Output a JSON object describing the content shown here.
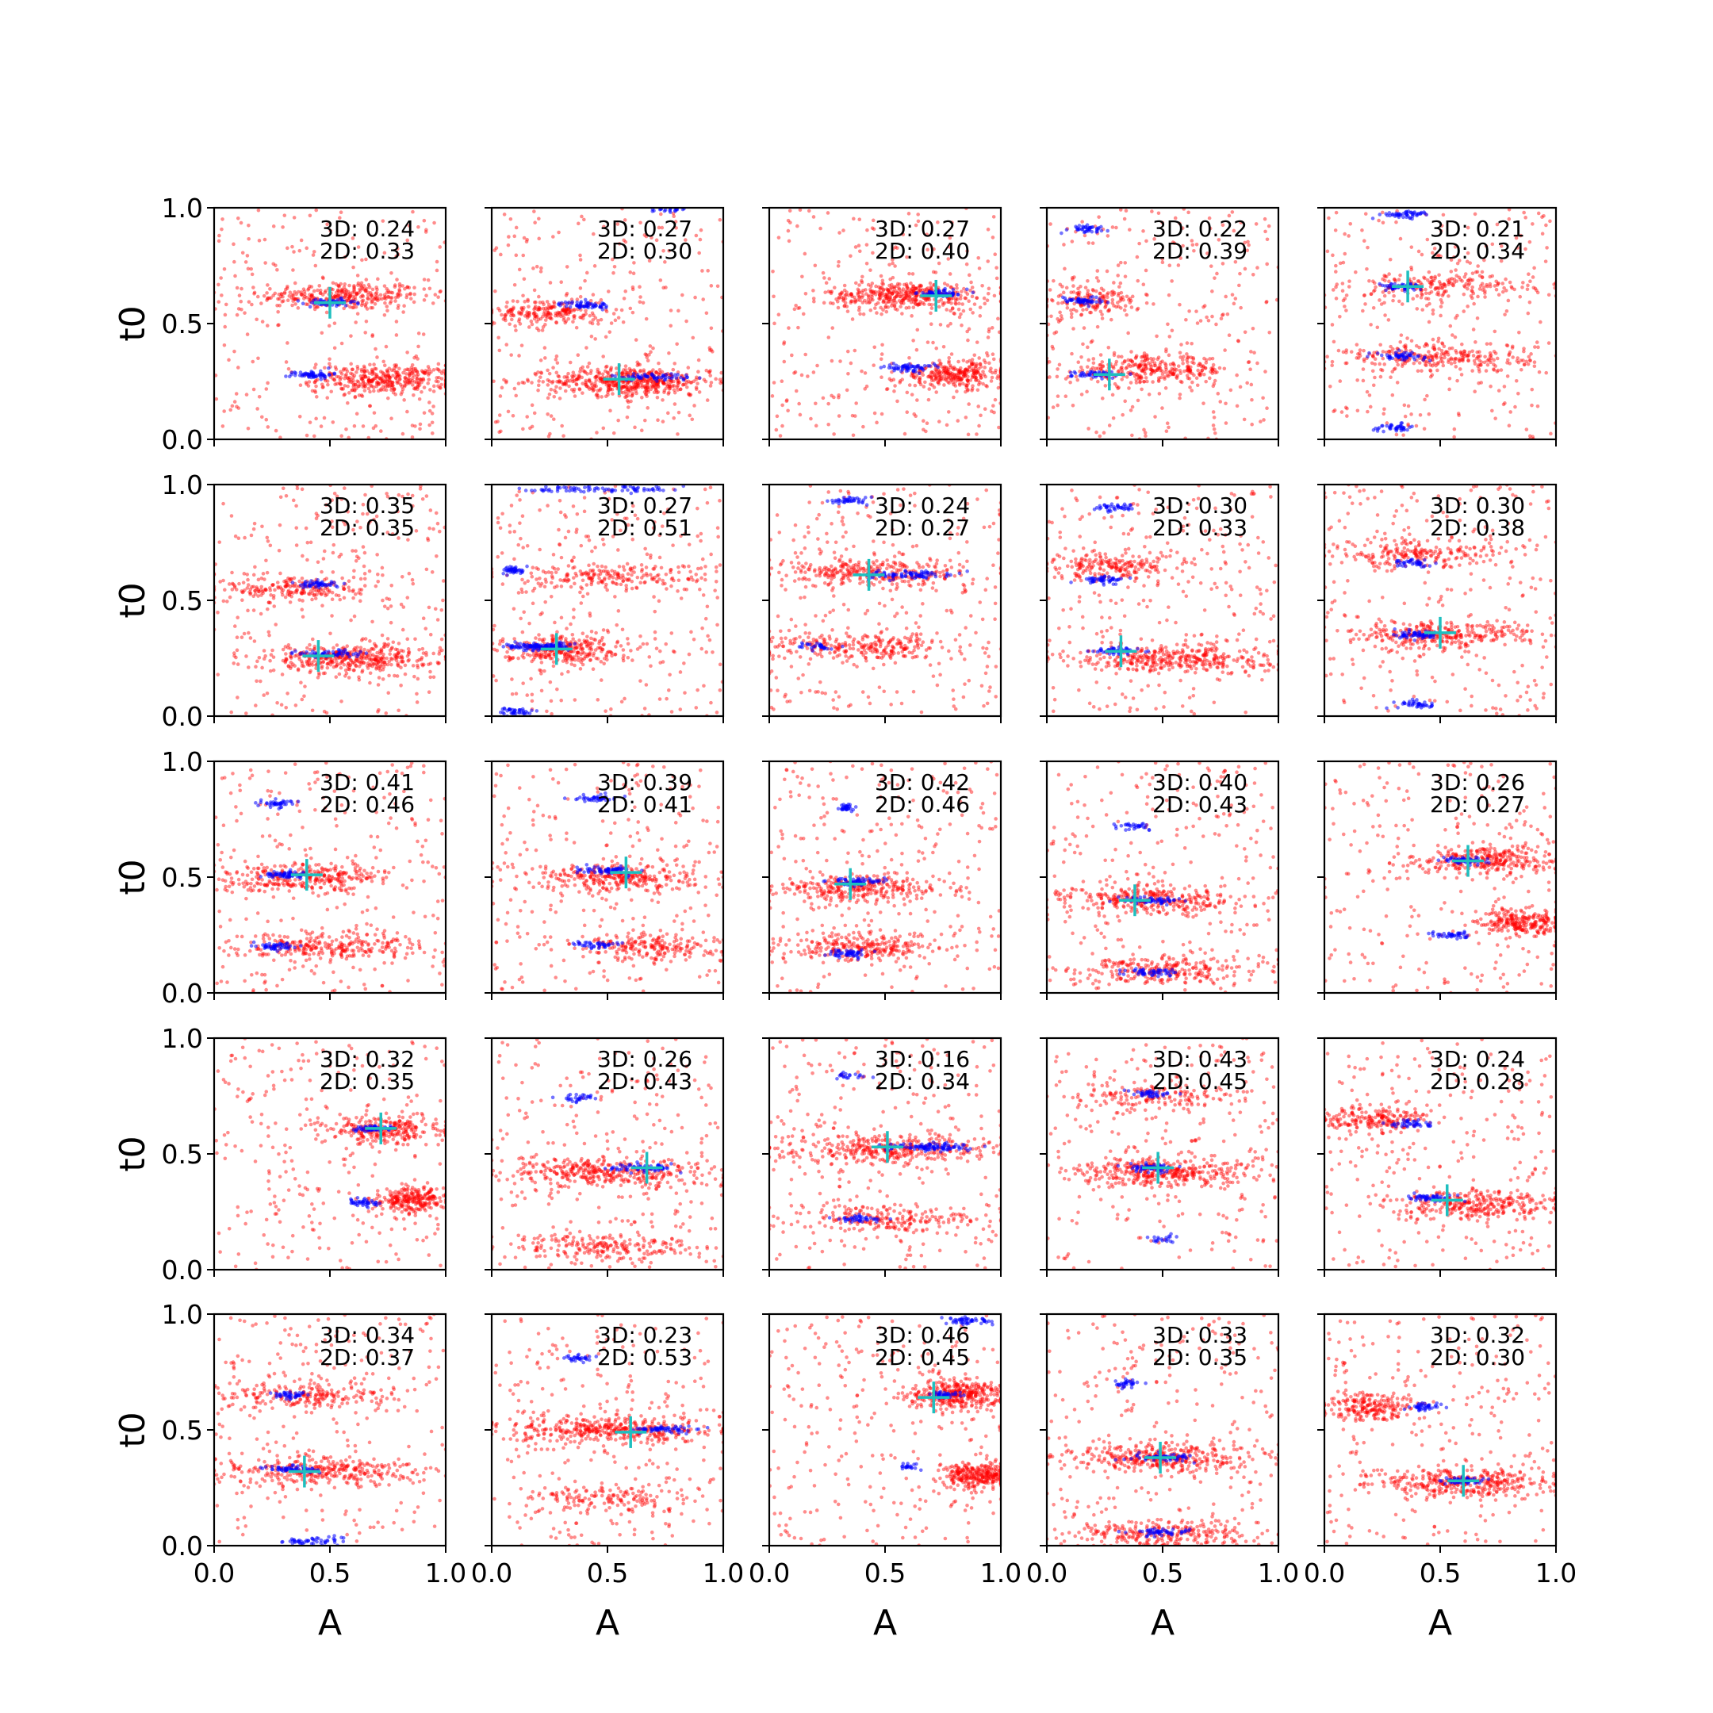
{
  "figure": {
    "rows": 5,
    "cols": 5,
    "x_axis_label": "A",
    "y_axis_label": "t0"
  },
  "colors": {
    "sample_2d": "#ff0000",
    "sample_3d": "#0000ff",
    "marker": "#1fbfbf"
  },
  "chart_data": {
    "type": "scatter",
    "xlim": [
      0,
      1
    ],
    "ylim": [
      0,
      1
    ],
    "x_ticks": [
      "0.0",
      "0.5",
      "1.0"
    ],
    "y_ticks": [
      "0.0",
      "0.5",
      "1.0"
    ],
    "xlabel": "A",
    "ylabel": "t0",
    "grid": false,
    "marker_symbol": "+",
    "panels": [
      {
        "row": 0,
        "col": 0,
        "text_3d": "3D: 0.24",
        "text_2d": "2D: 0.33",
        "marker": [
          0.5,
          0.59
        ],
        "red_bands": [
          [
            0.55,
            0.62,
            0.35,
            300
          ],
          [
            0.75,
            0.26,
            0.3,
            350
          ]
        ],
        "blue_bands": [
          [
            0.5,
            0.59,
            0.12,
            60
          ],
          [
            0.42,
            0.28,
            0.1,
            60
          ]
        ]
      },
      {
        "row": 0,
        "col": 1,
        "text_3d": "3D: 0.27",
        "text_2d": "2D: 0.30",
        "marker": [
          0.55,
          0.26
        ],
        "red_bands": [
          [
            0.6,
            0.25,
            0.35,
            500
          ],
          [
            0.25,
            0.55,
            0.25,
            200
          ]
        ],
        "blue_bands": [
          [
            0.4,
            0.58,
            0.12,
            60
          ],
          [
            0.7,
            0.27,
            0.2,
            60
          ],
          [
            0.75,
            0.99,
            0.1,
            20
          ]
        ]
      },
      {
        "row": 0,
        "col": 2,
        "text_3d": "3D: 0.27",
        "text_2d": "2D: 0.40",
        "marker": [
          0.72,
          0.62
        ],
        "red_bands": [
          [
            0.6,
            0.62,
            0.35,
            400
          ],
          [
            0.8,
            0.28,
            0.25,
            300
          ]
        ],
        "blue_bands": [
          [
            0.75,
            0.63,
            0.12,
            60
          ],
          [
            0.6,
            0.31,
            0.12,
            60
          ]
        ]
      },
      {
        "row": 0,
        "col": 3,
        "text_3d": "3D: 0.22",
        "text_2d": "2D: 0.39",
        "marker": [
          0.27,
          0.28
        ],
        "red_bands": [
          [
            0.45,
            0.3,
            0.35,
            300
          ],
          [
            0.2,
            0.6,
            0.2,
            150
          ]
        ],
        "blue_bands": [
          [
            0.17,
            0.91,
            0.1,
            40
          ],
          [
            0.15,
            0.6,
            0.1,
            50
          ],
          [
            0.22,
            0.28,
            0.12,
            50
          ]
        ]
      },
      {
        "row": 0,
        "col": 4,
        "text_3d": "3D: 0.21",
        "text_2d": "2D: 0.34",
        "marker": [
          0.36,
          0.66
        ],
        "red_bands": [
          [
            0.5,
            0.35,
            0.4,
            250
          ],
          [
            0.5,
            0.66,
            0.4,
            200
          ]
        ],
        "blue_bands": [
          [
            0.35,
            0.97,
            0.12,
            50
          ],
          [
            0.33,
            0.66,
            0.1,
            50
          ],
          [
            0.33,
            0.36,
            0.12,
            50
          ],
          [
            0.3,
            0.05,
            0.1,
            40
          ]
        ]
      },
      {
        "row": 1,
        "col": 0,
        "text_3d": "3D: 0.35",
        "text_2d": "2D: 0.35",
        "marker": [
          0.45,
          0.26
        ],
        "red_bands": [
          [
            0.6,
            0.25,
            0.35,
            400
          ],
          [
            0.35,
            0.55,
            0.3,
            200
          ]
        ],
        "blue_bands": [
          [
            0.45,
            0.57,
            0.1,
            50
          ],
          [
            0.5,
            0.27,
            0.15,
            50
          ]
        ]
      },
      {
        "row": 1,
        "col": 1,
        "text_3d": "3D: 0.27",
        "text_2d": "2D: 0.51",
        "marker": [
          0.28,
          0.29
        ],
        "red_bands": [
          [
            0.3,
            0.29,
            0.25,
            300
          ],
          [
            0.5,
            0.6,
            0.45,
            200
          ]
        ],
        "blue_bands": [
          [
            0.2,
            0.3,
            0.15,
            120
          ],
          [
            0.5,
            0.98,
            0.4,
            80
          ],
          [
            0.1,
            0.63,
            0.05,
            40
          ],
          [
            0.1,
            0.02,
            0.1,
            40
          ]
        ]
      },
      {
        "row": 1,
        "col": 2,
        "text_3d": "3D: 0.24",
        "text_2d": "2D: 0.27",
        "marker": [
          0.43,
          0.61
        ],
        "red_bands": [
          [
            0.45,
            0.62,
            0.4,
            300
          ],
          [
            0.4,
            0.3,
            0.4,
            250
          ]
        ],
        "blue_bands": [
          [
            0.6,
            0.61,
            0.2,
            80
          ],
          [
            0.35,
            0.93,
            0.1,
            40
          ],
          [
            0.2,
            0.3,
            0.08,
            30
          ]
        ]
      },
      {
        "row": 1,
        "col": 3,
        "text_3d": "3D: 0.30",
        "text_2d": "2D: 0.33",
        "marker": [
          0.32,
          0.28
        ],
        "red_bands": [
          [
            0.55,
            0.25,
            0.4,
            350
          ],
          [
            0.3,
            0.65,
            0.3,
            200
          ]
        ],
        "blue_bands": [
          [
            0.3,
            0.9,
            0.1,
            40
          ],
          [
            0.25,
            0.59,
            0.1,
            50
          ],
          [
            0.3,
            0.28,
            0.1,
            50
          ]
        ]
      },
      {
        "row": 1,
        "col": 4,
        "text_3d": "3D: 0.30",
        "text_2d": "2D: 0.38",
        "marker": [
          0.5,
          0.36
        ],
        "red_bands": [
          [
            0.5,
            0.35,
            0.4,
            300
          ],
          [
            0.4,
            0.7,
            0.4,
            200
          ]
        ],
        "blue_bands": [
          [
            0.38,
            0.66,
            0.1,
            40
          ],
          [
            0.42,
            0.35,
            0.12,
            60
          ],
          [
            0.4,
            0.05,
            0.1,
            40
          ]
        ]
      },
      {
        "row": 2,
        "col": 0,
        "text_3d": "3D: 0.41",
        "text_2d": "2D: 0.46",
        "marker": [
          0.4,
          0.51
        ],
        "red_bands": [
          [
            0.4,
            0.5,
            0.35,
            300
          ],
          [
            0.5,
            0.2,
            0.4,
            250
          ]
        ],
        "blue_bands": [
          [
            0.28,
            0.82,
            0.08,
            40
          ],
          [
            0.3,
            0.51,
            0.1,
            60
          ],
          [
            0.28,
            0.2,
            0.1,
            50
          ]
        ]
      },
      {
        "row": 2,
        "col": 1,
        "text_3d": "3D: 0.39",
        "text_2d": "2D: 0.41",
        "marker": [
          0.58,
          0.52
        ],
        "red_bands": [
          [
            0.55,
            0.5,
            0.35,
            300
          ],
          [
            0.7,
            0.2,
            0.3,
            200
          ]
        ],
        "blue_bands": [
          [
            0.45,
            0.84,
            0.1,
            40
          ],
          [
            0.5,
            0.53,
            0.15,
            60
          ],
          [
            0.45,
            0.21,
            0.1,
            40
          ]
        ]
      },
      {
        "row": 2,
        "col": 2,
        "text_3d": "3D: 0.42",
        "text_2d": "2D: 0.46",
        "marker": [
          0.35,
          0.47
        ],
        "red_bands": [
          [
            0.4,
            0.45,
            0.35,
            300
          ],
          [
            0.4,
            0.2,
            0.35,
            250
          ]
        ],
        "blue_bands": [
          [
            0.33,
            0.8,
            0.06,
            30
          ],
          [
            0.4,
            0.48,
            0.15,
            60
          ],
          [
            0.33,
            0.17,
            0.1,
            50
          ]
        ]
      },
      {
        "row": 2,
        "col": 3,
        "text_3d": "3D: 0.40",
        "text_2d": "2D: 0.43",
        "marker": [
          0.38,
          0.4
        ],
        "red_bands": [
          [
            0.45,
            0.4,
            0.35,
            300
          ],
          [
            0.5,
            0.1,
            0.4,
            250
          ]
        ],
        "blue_bands": [
          [
            0.38,
            0.72,
            0.08,
            30
          ],
          [
            0.45,
            0.4,
            0.15,
            60
          ],
          [
            0.45,
            0.09,
            0.12,
            50
          ]
        ]
      },
      {
        "row": 2,
        "col": 4,
        "text_3d": "3D: 0.26",
        "text_2d": "2D: 0.27",
        "marker": [
          0.62,
          0.57
        ],
        "red_bands": [
          [
            0.7,
            0.57,
            0.3,
            300
          ],
          [
            0.85,
            0.3,
            0.2,
            250
          ]
        ],
        "blue_bands": [
          [
            0.6,
            0.57,
            0.12,
            60
          ],
          [
            0.55,
            0.25,
            0.1,
            40
          ]
        ]
      },
      {
        "row": 3,
        "col": 0,
        "text_3d": "3D: 0.32",
        "text_2d": "2D: 0.35",
        "marker": [
          0.72,
          0.61
        ],
        "red_bands": [
          [
            0.75,
            0.6,
            0.25,
            250
          ],
          [
            0.85,
            0.3,
            0.15,
            250
          ]
        ],
        "blue_bands": [
          [
            0.68,
            0.61,
            0.12,
            50
          ],
          [
            0.65,
            0.29,
            0.1,
            40
          ]
        ]
      },
      {
        "row": 3,
        "col": 1,
        "text_3d": "3D: 0.26",
        "text_2d": "2D: 0.43",
        "marker": [
          0.67,
          0.44
        ],
        "red_bands": [
          [
            0.5,
            0.42,
            0.45,
            350
          ],
          [
            0.5,
            0.1,
            0.4,
            200
          ]
        ],
        "blue_bands": [
          [
            0.37,
            0.74,
            0.08,
            30
          ],
          [
            0.65,
            0.44,
            0.15,
            60
          ]
        ]
      },
      {
        "row": 3,
        "col": 2,
        "text_3d": "3D: 0.16",
        "text_2d": "2D: 0.34",
        "marker": [
          0.51,
          0.53
        ],
        "red_bands": [
          [
            0.5,
            0.52,
            0.45,
            350
          ],
          [
            0.5,
            0.22,
            0.4,
            200
          ]
        ],
        "blue_bands": [
          [
            0.7,
            0.53,
            0.2,
            100
          ],
          [
            0.38,
            0.22,
            0.12,
            40
          ],
          [
            0.35,
            0.84,
            0.1,
            20
          ]
        ]
      },
      {
        "row": 3,
        "col": 3,
        "text_3d": "3D: 0.43",
        "text_2d": "2D: 0.45",
        "marker": [
          0.48,
          0.44
        ],
        "red_bands": [
          [
            0.5,
            0.42,
            0.4,
            350
          ],
          [
            0.5,
            0.75,
            0.35,
            150
          ]
        ],
        "blue_bands": [
          [
            0.45,
            0.76,
            0.1,
            40
          ],
          [
            0.45,
            0.44,
            0.12,
            60
          ],
          [
            0.5,
            0.13,
            0.08,
            20
          ]
        ]
      },
      {
        "row": 3,
        "col": 4,
        "text_3d": "3D: 0.24",
        "text_2d": "2D: 0.28",
        "marker": [
          0.53,
          0.3
        ],
        "red_bands": [
          [
            0.65,
            0.28,
            0.35,
            300
          ],
          [
            0.2,
            0.65,
            0.25,
            200
          ]
        ],
        "blue_bands": [
          [
            0.38,
            0.63,
            0.1,
            40
          ],
          [
            0.45,
            0.31,
            0.12,
            50
          ]
        ]
      },
      {
        "row": 4,
        "col": 0,
        "text_3d": "3D: 0.34",
        "text_2d": "2D: 0.37",
        "marker": [
          0.39,
          0.32
        ],
        "red_bands": [
          [
            0.45,
            0.32,
            0.4,
            300
          ],
          [
            0.4,
            0.65,
            0.4,
            200
          ]
        ],
        "blue_bands": [
          [
            0.32,
            0.65,
            0.08,
            40
          ],
          [
            0.35,
            0.33,
            0.12,
            60
          ],
          [
            0.4,
            0.02,
            0.15,
            50
          ]
        ]
      },
      {
        "row": 4,
        "col": 1,
        "text_3d": "3D: 0.23",
        "text_2d": "2D: 0.53",
        "marker": [
          0.6,
          0.49
        ],
        "red_bands": [
          [
            0.5,
            0.5,
            0.45,
            400
          ],
          [
            0.5,
            0.2,
            0.4,
            150
          ]
        ],
        "blue_bands": [
          [
            0.37,
            0.81,
            0.08,
            30
          ],
          [
            0.75,
            0.5,
            0.15,
            60
          ]
        ]
      },
      {
        "row": 4,
        "col": 2,
        "text_3d": "3D: 0.46",
        "text_2d": "2D: 0.45",
        "marker": [
          0.71,
          0.64
        ],
        "red_bands": [
          [
            0.8,
            0.65,
            0.2,
            350
          ],
          [
            0.9,
            0.3,
            0.15,
            300
          ]
        ],
        "blue_bands": [
          [
            0.85,
            0.97,
            0.1,
            50
          ],
          [
            0.75,
            0.65,
            0.1,
            40
          ],
          [
            0.6,
            0.34,
            0.06,
            20
          ]
        ]
      },
      {
        "row": 4,
        "col": 3,
        "text_3d": "3D: 0.33",
        "text_2d": "2D: 0.35",
        "marker": [
          0.49,
          0.38
        ],
        "red_bands": [
          [
            0.5,
            0.38,
            0.4,
            350
          ],
          [
            0.5,
            0.05,
            0.4,
            250
          ]
        ],
        "blue_bands": [
          [
            0.35,
            0.7,
            0.06,
            30
          ],
          [
            0.5,
            0.38,
            0.15,
            60
          ],
          [
            0.5,
            0.06,
            0.15,
            50
          ]
        ]
      },
      {
        "row": 4,
        "col": 4,
        "text_3d": "3D: 0.32",
        "text_2d": "2D: 0.30",
        "marker": [
          0.6,
          0.28
        ],
        "red_bands": [
          [
            0.6,
            0.27,
            0.35,
            350
          ],
          [
            0.2,
            0.6,
            0.2,
            200
          ]
        ],
        "blue_bands": [
          [
            0.43,
            0.6,
            0.1,
            40
          ],
          [
            0.6,
            0.28,
            0.12,
            50
          ]
        ]
      }
    ]
  }
}
